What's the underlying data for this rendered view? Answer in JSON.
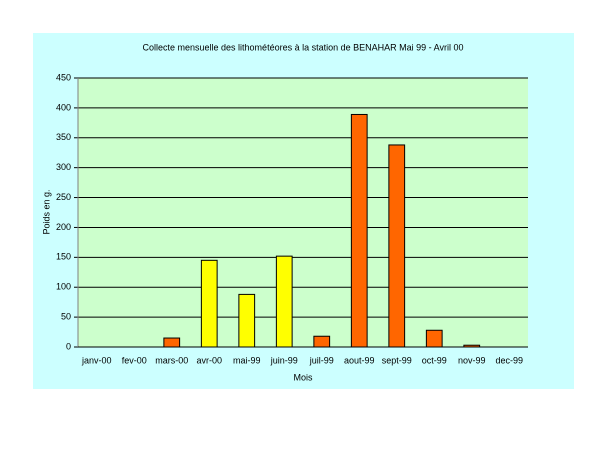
{
  "chart_data": {
    "type": "bar",
    "title": "Collecte mensuelle des lithométéores à la station de BENAHAR  Mai 99 - Avril 00",
    "x_label": "Mois",
    "y_label": "Poids en g.",
    "categories": [
      "janv-00",
      "fev-00",
      "mars-00",
      "avr-00",
      "mai-99",
      "juin-99",
      "juil-99",
      "aout-99",
      "sept-99",
      "oct-99",
      "nov-99",
      "dec-99"
    ],
    "values": [
      0,
      0,
      15,
      145,
      88,
      152,
      18,
      389,
      338,
      28,
      3,
      0
    ],
    "colors": [
      "#ff6600",
      "#ff6600",
      "#ff6600",
      "#ffff00",
      "#ffff00",
      "#ffff00",
      "#ff6600",
      "#ff6600",
      "#ff6600",
      "#ff6600",
      "#ff6600",
      "#ff6600"
    ],
    "ylim": [
      0,
      450
    ],
    "yticks": [
      0,
      50,
      100,
      150,
      200,
      250,
      300,
      350,
      400,
      450
    ],
    "grid": true
  }
}
